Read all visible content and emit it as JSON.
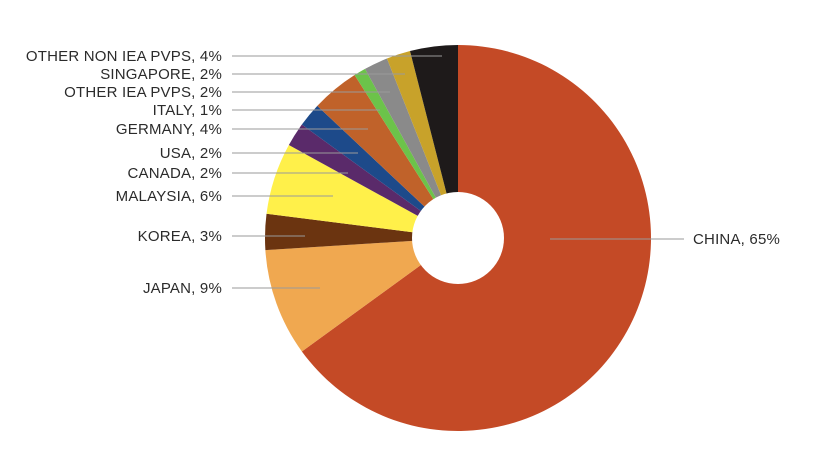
{
  "chart_data": {
    "type": "pie",
    "title": "",
    "donut": true,
    "slices": [
      {
        "label": "CHINA",
        "value": 65,
        "display": "CHINA, 65%",
        "color": "#c44a26"
      },
      {
        "label": "JAPAN",
        "value": 9,
        "display": "JAPAN, 9%",
        "color": "#f0a850"
      },
      {
        "label": "KOREA",
        "value": 3,
        "display": "KOREA, 3%",
        "color": "#6b3410"
      },
      {
        "label": "MALAYSIA",
        "value": 6,
        "display": "MALAYSIA, 6%",
        "color": "#fff04a"
      },
      {
        "label": "CANADA",
        "value": 2,
        "display": "CANADA, 2%",
        "color": "#5a2a6a"
      },
      {
        "label": "USA",
        "value": 2,
        "display": "USA, 2%",
        "color": "#1d4a8a"
      },
      {
        "label": "GERMANY",
        "value": 4,
        "display": "GERMANY, 4%",
        "color": "#c0622a"
      },
      {
        "label": "ITALY",
        "value": 1,
        "display": "ITALY, 1%",
        "color": "#6cc34a"
      },
      {
        "label": "OTHER IEA PVPS",
        "value": 2,
        "display": "OTHER IEA PVPS, 2%",
        "color": "#8a8a8a"
      },
      {
        "label": "SINGAPORE",
        "value": 2,
        "display": "SINGAPORE, 2%",
        "color": "#c8a22a"
      },
      {
        "label": "OTHER NON IEA PVPS",
        "value": 4,
        "display": "OTHER NON IEA PVPS, 4%",
        "color": "#1e1a1a"
      }
    ]
  }
}
